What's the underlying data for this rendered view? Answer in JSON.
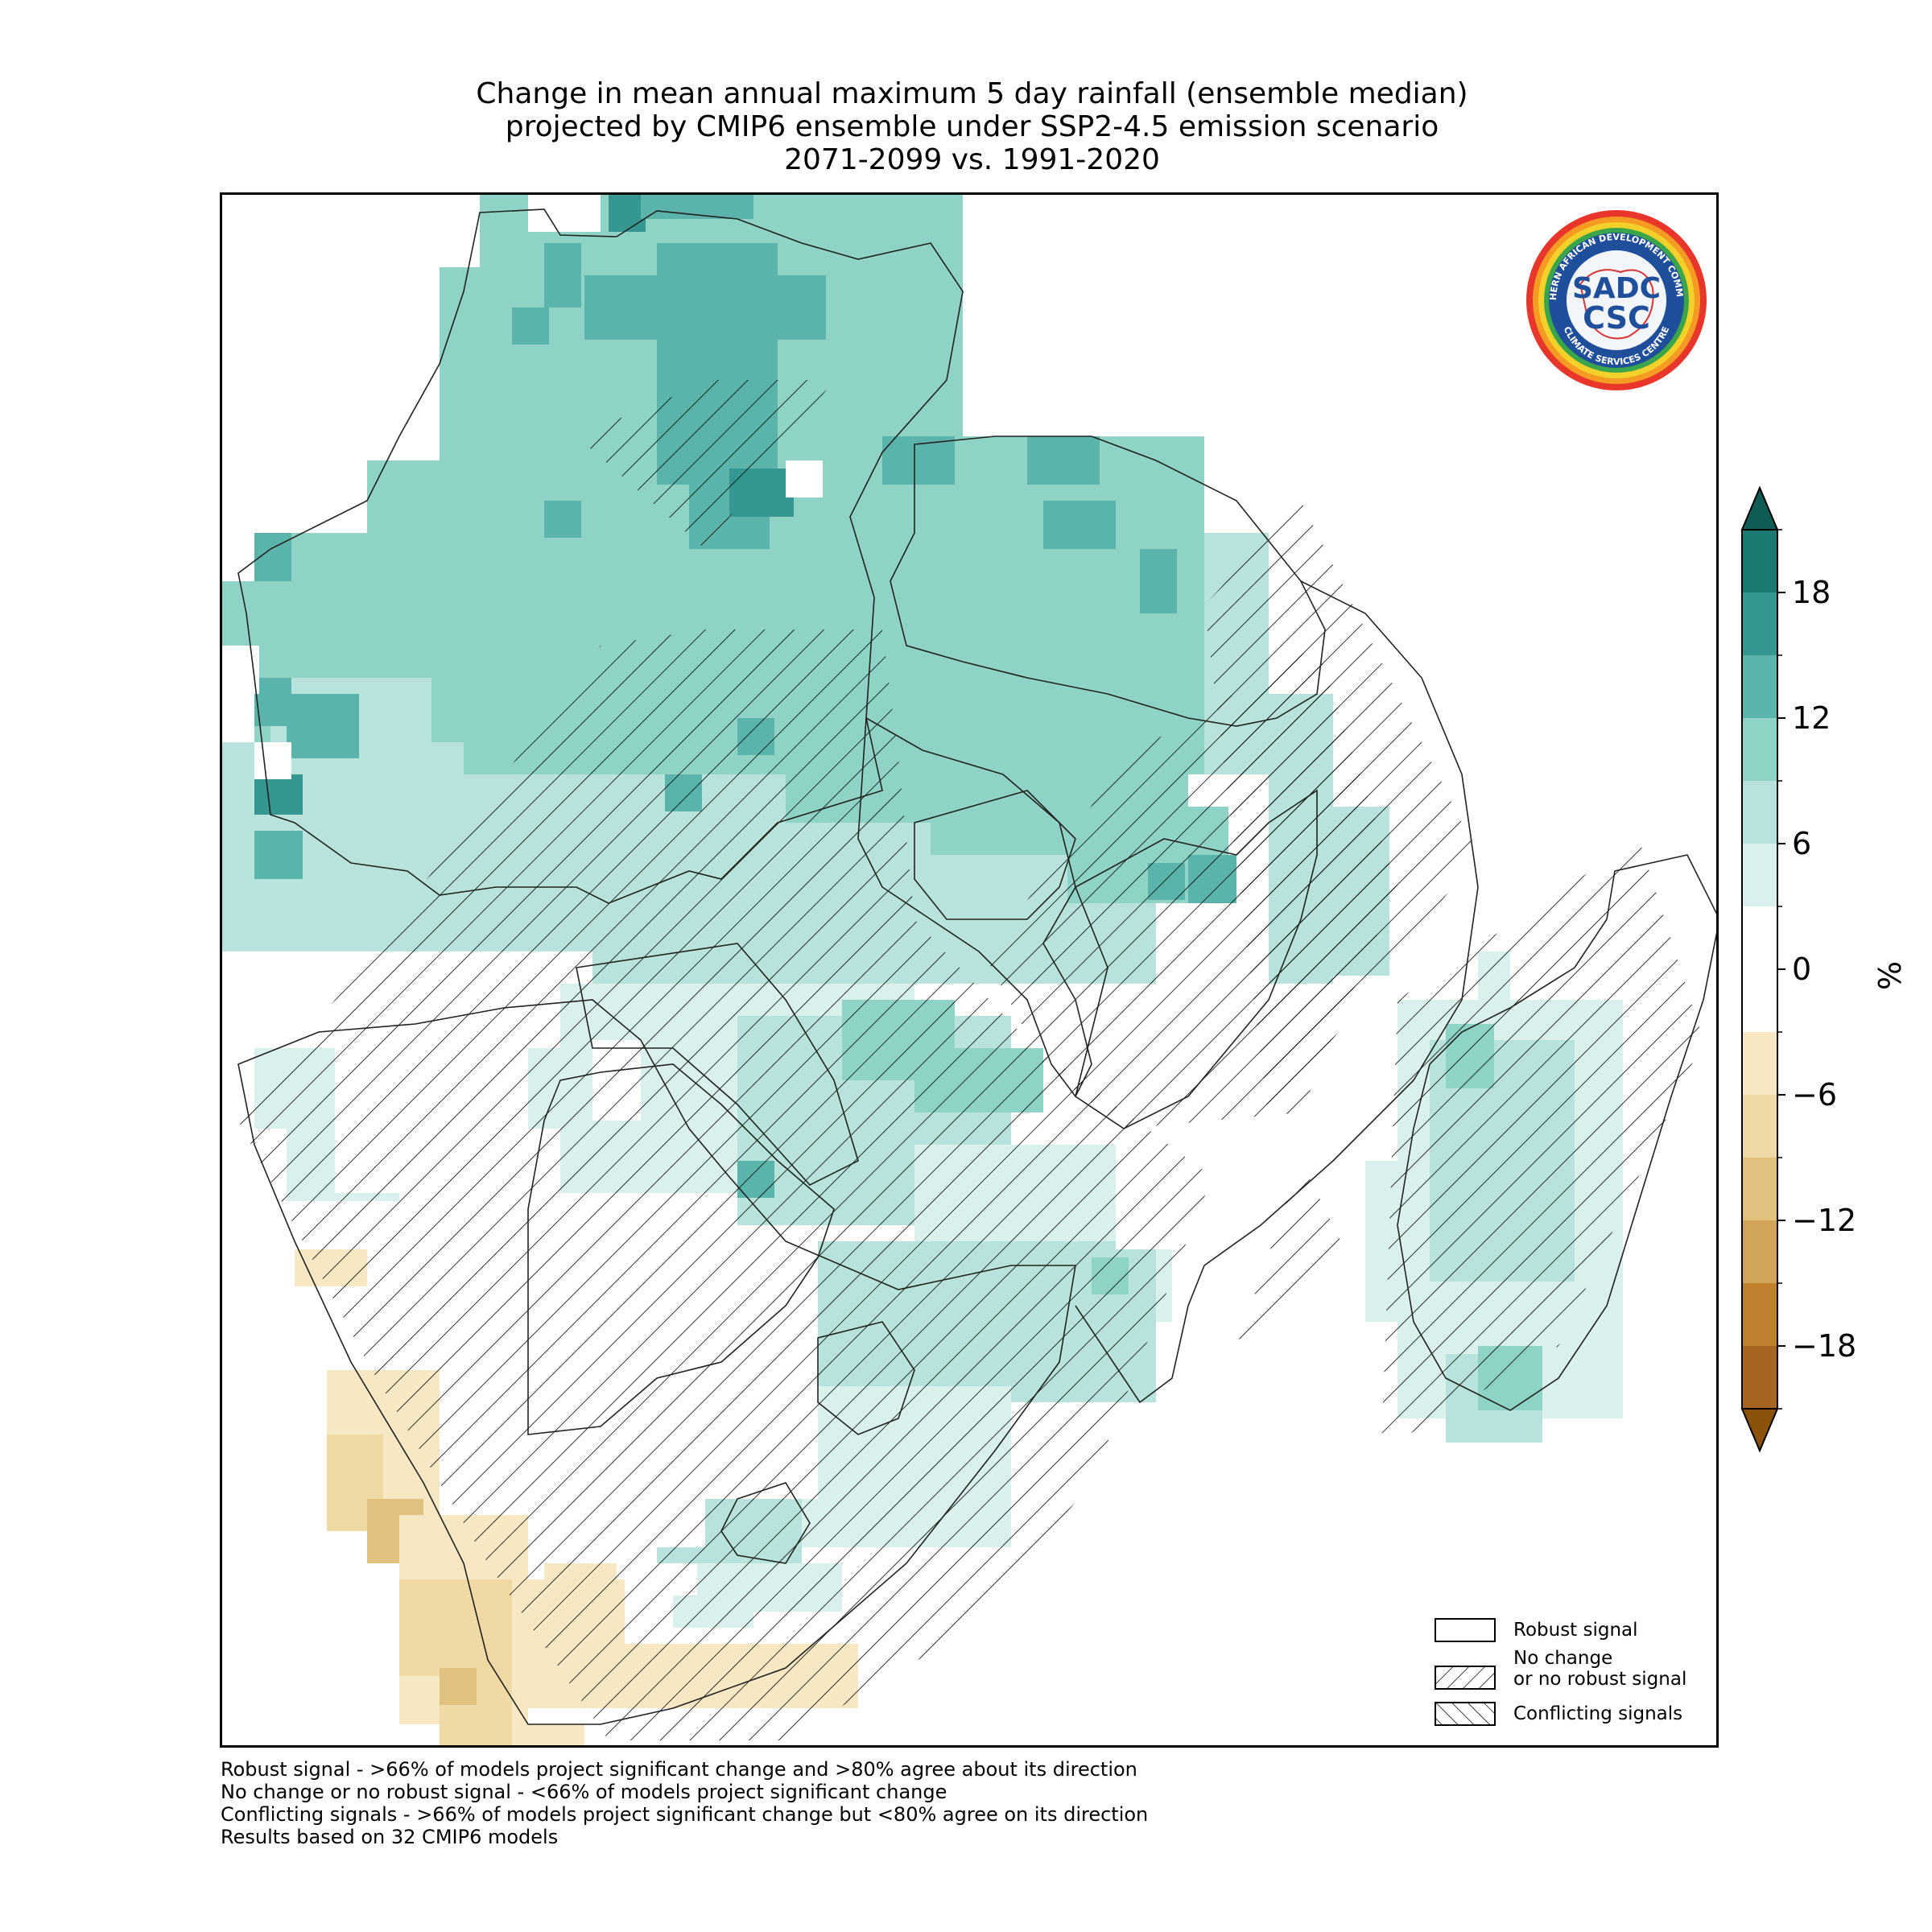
{
  "title": {
    "line1": "Change in mean annual maximum 5 day rainfall (ensemble median)",
    "line2": "projected by CMIP6 ensemble under SSP2-4.5 emission scenario",
    "line3": "2071-2099 vs. 1991-2020"
  },
  "logo": {
    "text_top": "SOUTHERN AFRICAN DEVELOPMENT COMMUNITY",
    "text_bottom": "CLIMATE SERVICES CENTRE",
    "mark_top": "SADC",
    "mark_bottom": "CSC"
  },
  "legend": {
    "items": [
      {
        "label": "Robust signal",
        "pattern": "none"
      },
      {
        "label_line1": "No change",
        "label_line2": "or no robust signal",
        "pattern": "forward-hatch"
      },
      {
        "label": "Conflicting signals",
        "pattern": "back-hatch"
      }
    ]
  },
  "colorbar": {
    "unit": "%",
    "ticks": [
      18,
      12,
      6,
      0,
      -6,
      -12,
      -18
    ],
    "tick_labels": [
      "18",
      "12",
      "6",
      "0",
      "−6",
      "−12",
      "−18"
    ],
    "colors_top_to_bottom": [
      "#1b7a6f",
      "#35978f",
      "#5ab4a9",
      "#8fd3c7",
      "#b7e3dc",
      "#d9f0ec",
      "#ffffff",
      "#ffffff",
      "#f6e8c3",
      "#efd9a5",
      "#e0c17e",
      "#d0a55a",
      "#bf812d",
      "#a76521"
    ],
    "extend_top_color": "#0f5c55",
    "extend_bottom_color": "#8c510a"
  },
  "footnotes": {
    "line1": "Robust signal - >66% of models project significant change and >80% agree about its direction",
    "line2": "No change or no robust signal - <66% of models project significant change",
    "line3": "Conflicting signals - >66% of models project significant change but <80% agree on its direction",
    "line4": "Results based on 32 CMIP6 models"
  },
  "map": {
    "region": "Southern Africa (SADC)",
    "colors": {
      "teal_dark": "#35978f",
      "teal_mid": "#5ab4a9",
      "teal_light": "#8fd3c7",
      "teal_pale": "#b7e3dc",
      "teal_faint": "#d9f0ec",
      "tan_faint": "#f6e8c3",
      "tan_light": "#efd9a5",
      "tan_mid": "#e0c17e"
    }
  }
}
